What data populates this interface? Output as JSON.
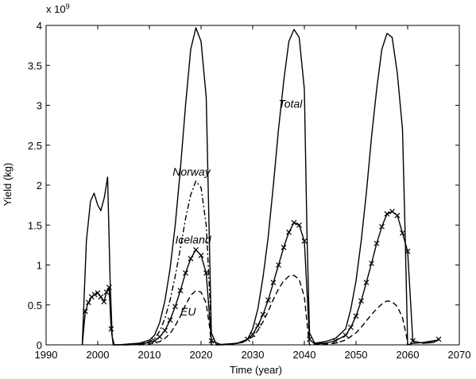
{
  "chart_data": {
    "type": "line",
    "title": "",
    "xlabel": "Time (year)",
    "ylabel": "Yield (kg)",
    "y_multiplier_label": "x 10",
    "y_multiplier_exponent": "9",
    "xlim": [
      1990,
      2070
    ],
    "ylim": [
      0,
      4
    ],
    "x_ticks": [
      1990,
      2000,
      2010,
      2020,
      2030,
      2040,
      2050,
      2060,
      2070
    ],
    "y_ticks": [
      0,
      0.5,
      1,
      1.5,
      2,
      2.5,
      3,
      3.5,
      4
    ],
    "y_tick_labels": [
      "0",
      "0.5",
      "1",
      "1.5",
      "2",
      "2.5",
      "3",
      "3.5",
      "4"
    ],
    "grid": false,
    "legend": "none",
    "annotations": [
      {
        "text": "Total",
        "series": "Total",
        "x": 2035,
        "y": 2.97
      },
      {
        "text": "Norway",
        "series": "Norway",
        "x": 2014.5,
        "y": 2.12
      },
      {
        "text": "Iceland",
        "series": "Iceland",
        "x": 2015,
        "y": 1.27
      },
      {
        "text": "EU",
        "series": "EU",
        "x": 2016,
        "y": 0.37
      }
    ],
    "series": [
      {
        "name": "Total",
        "style": "solid",
        "marker": "none",
        "color": "#000000",
        "x": [
          1997,
          1997.8,
          1998.6,
          1999.3,
          2000,
          2000.6,
          2001.3,
          2001.9,
          2002.4,
          2002.8,
          2003.2,
          2004,
          2006,
          2008,
          2010,
          2011,
          2012,
          2013,
          2014,
          2015,
          2016,
          2017,
          2018,
          2019,
          2020,
          2021,
          2021.5,
          2022,
          2023,
          2025,
          2027,
          2029,
          2030,
          2031,
          2032,
          2033,
          2034,
          2035,
          2036,
          2037,
          2038,
          2039,
          2040,
          2040.5,
          2041,
          2042,
          2044,
          2046,
          2048,
          2049,
          2050,
          2051,
          2052,
          2053,
          2054,
          2055,
          2056,
          2057,
          2058,
          2059,
          2059.5,
          2060,
          2061,
          2063,
          2065,
          2066
        ],
        "y": [
          0,
          1.3,
          1.8,
          1.9,
          1.75,
          1.68,
          1.85,
          2.1,
          0.8,
          0.1,
          0,
          0,
          0.01,
          0.02,
          0.06,
          0.12,
          0.28,
          0.55,
          0.95,
          1.5,
          2.2,
          3.0,
          3.7,
          3.97,
          3.8,
          3.1,
          1.6,
          0.15,
          0,
          0.01,
          0.02,
          0.07,
          0.2,
          0.45,
          0.85,
          1.35,
          2.0,
          2.7,
          3.3,
          3.8,
          3.95,
          3.85,
          3.2,
          1.4,
          0.15,
          0.02,
          0.04,
          0.08,
          0.2,
          0.45,
          0.8,
          1.3,
          1.9,
          2.6,
          3.2,
          3.7,
          3.9,
          3.85,
          3.4,
          2.7,
          1.4,
          0,
          0.02,
          0.03,
          0.05,
          0.06
        ]
      },
      {
        "name": "Norway",
        "style": "dashdot",
        "marker": "none",
        "color": "#000000",
        "x": [
          2005,
          2008,
          2010,
          2011,
          2012,
          2013,
          2014,
          2015,
          2016,
          2017,
          2018,
          2019,
          2020,
          2021,
          2021.7,
          2022
        ],
        "y": [
          0,
          0.01,
          0.04,
          0.08,
          0.17,
          0.33,
          0.56,
          0.86,
          1.21,
          1.58,
          1.88,
          2.05,
          1.97,
          1.5,
          0.6,
          0
        ]
      },
      {
        "name": "Iceland",
        "style": "solid",
        "marker": "x",
        "color": "#000000",
        "x": [
          1997,
          1997.6,
          1998.2,
          1998.8,
          1999.4,
          2000,
          2000.6,
          2001.2,
          2001.7,
          2002.2,
          2002.6,
          2003,
          2006,
          2008,
          2010,
          2011,
          2012,
          2013,
          2014,
          2015,
          2016,
          2017,
          2018,
          2019,
          2020,
          2021,
          2022,
          2024,
          2026,
          2028,
          2029,
          2030,
          2031,
          2032,
          2033,
          2034,
          2035,
          2036,
          2037,
          2038,
          2039,
          2040,
          2041,
          2042,
          2044,
          2046,
          2048,
          2049,
          2050,
          2051,
          2052,
          2053,
          2054,
          2055,
          2056,
          2057,
          2058,
          2059,
          2060,
          2061,
          2063,
          2065,
          2066
        ],
        "y": [
          0,
          0.42,
          0.53,
          0.6,
          0.63,
          0.65,
          0.6,
          0.54,
          0.66,
          0.72,
          0.2,
          0,
          0,
          0.01,
          0.03,
          0.05,
          0.1,
          0.18,
          0.31,
          0.48,
          0.68,
          0.9,
          1.08,
          1.19,
          1.12,
          0.9,
          0.05,
          0,
          0.01,
          0.03,
          0.07,
          0.13,
          0.24,
          0.38,
          0.56,
          0.78,
          1.0,
          1.22,
          1.41,
          1.53,
          1.5,
          1.3,
          0.07,
          0.01,
          0.02,
          0.05,
          0.12,
          0.22,
          0.36,
          0.55,
          0.78,
          1.02,
          1.27,
          1.48,
          1.64,
          1.67,
          1.62,
          1.4,
          1.17,
          0.05,
          0.02,
          0.03,
          0.07
        ]
      },
      {
        "name": "EU",
        "style": "dashed",
        "marker": "none",
        "color": "#000000",
        "x": [
          2008,
          2010,
          2012,
          2013,
          2014,
          2015,
          2016,
          2017,
          2018,
          2019,
          2020,
          2021,
          2021.7,
          2022,
          2024,
          2026,
          2028,
          2030,
          2031,
          2032,
          2033,
          2034,
          2035,
          2036,
          2037,
          2038,
          2039,
          2040,
          2040.8,
          2041,
          2044,
          2046,
          2048,
          2050,
          2051,
          2052,
          2053,
          2054,
          2055,
          2056,
          2057,
          2058,
          2059,
          2059.8,
          2060
        ],
        "y": [
          0,
          0.01,
          0.04,
          0.08,
          0.14,
          0.24,
          0.36,
          0.5,
          0.62,
          0.68,
          0.66,
          0.52,
          0.2,
          0,
          0,
          0.01,
          0.03,
          0.1,
          0.18,
          0.29,
          0.42,
          0.57,
          0.7,
          0.8,
          0.86,
          0.87,
          0.82,
          0.6,
          0.1,
          0,
          0.01,
          0.02,
          0.06,
          0.15,
          0.22,
          0.3,
          0.38,
          0.45,
          0.51,
          0.55,
          0.54,
          0.48,
          0.34,
          0.1,
          0
        ]
      }
    ]
  }
}
